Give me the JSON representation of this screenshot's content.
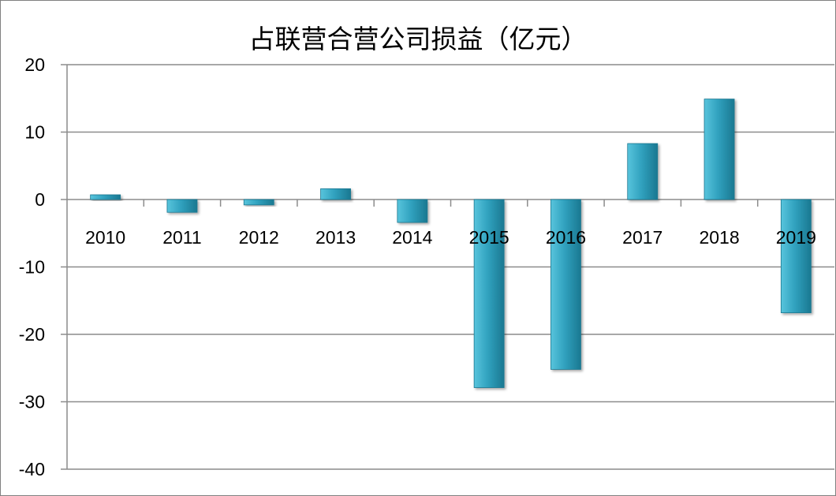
{
  "chart_data": {
    "type": "bar",
    "title": "占联营合营公司损益（亿元）",
    "xlabel": "",
    "ylabel": "",
    "categories": [
      "2010",
      "2011",
      "2012",
      "2013",
      "2014",
      "2015",
      "2016",
      "2017",
      "2018",
      "2019"
    ],
    "values": [
      0.7,
      -1.9,
      -0.8,
      1.6,
      -3.4,
      -27.9,
      -25.2,
      8.3,
      14.9,
      -16.8
    ],
    "ylim": [
      -40,
      20
    ],
    "yticks": [
      20,
      10,
      0,
      -10,
      -20,
      -30,
      -40
    ],
    "ytick_labels": [
      "20",
      "10",
      "0",
      "-10",
      "-20",
      "-30",
      "-40"
    ],
    "grid": true,
    "legend": "none",
    "colors": {
      "bar_light": "#58c4dc",
      "bar_mid": "#31a2bf",
      "bar_dark": "#1a7891",
      "grid": "#8c8c8c",
      "axis": "#8c8c8c"
    }
  }
}
